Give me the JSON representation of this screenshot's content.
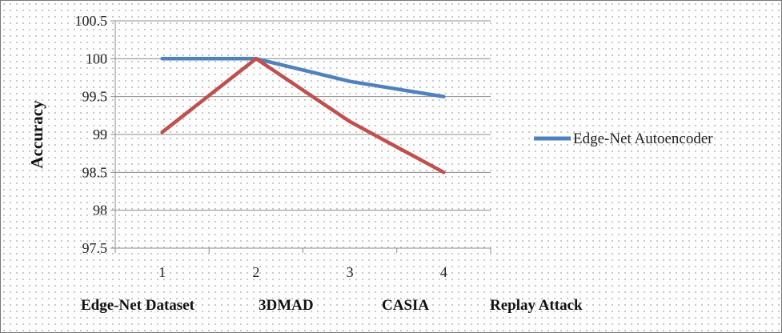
{
  "chart_data": {
    "type": "line",
    "x": [
      1,
      2,
      3,
      4
    ],
    "xticks": [
      "1",
      "2",
      "3",
      "4"
    ],
    "categories": [
      "Edge-Net Dataset",
      "3DMAD",
      "CASIA",
      "Replay Attack"
    ],
    "ylabel": "Accuracy",
    "ylim": [
      97.5,
      100.5
    ],
    "yticks": [
      "97.5",
      "98",
      "98.5",
      "99",
      "99.5",
      "100",
      "100.5"
    ],
    "grid": true,
    "legend_position": "right",
    "series": [
      {
        "name": "Edge-Net Autoencoder",
        "color": "#4f81bd",
        "values": [
          100,
          100,
          99.7,
          99.5
        ]
      },
      {
        "name": "",
        "color": "#c0504d",
        "values": [
          99.03,
          100,
          99.17,
          98.5
        ]
      }
    ]
  }
}
